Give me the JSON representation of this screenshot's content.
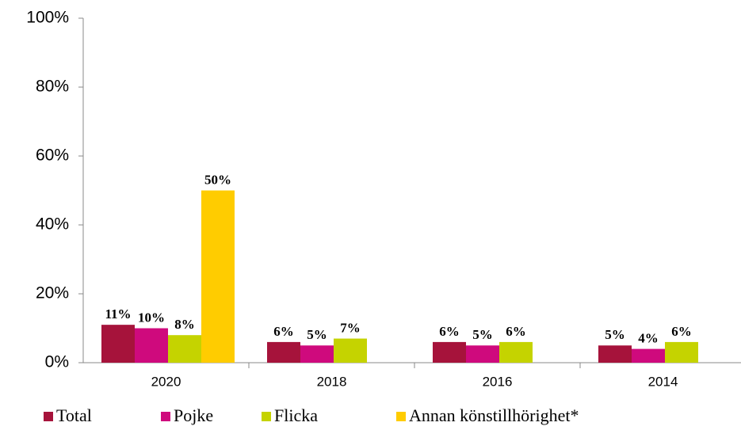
{
  "chart_data": {
    "type": "bar",
    "categories": [
      "2020",
      "2018",
      "2016",
      "2014"
    ],
    "series": [
      {
        "name": "Total",
        "color": "#a6133b",
        "values": [
          11,
          6,
          6,
          5
        ],
        "value_labels": [
          "11%",
          "6%",
          "6%",
          "5%"
        ]
      },
      {
        "name": "Pojke",
        "color": "#cf0a7d",
        "values": [
          10,
          5,
          5,
          4
        ],
        "value_labels": [
          "10%",
          "5%",
          "5%",
          "4%"
        ]
      },
      {
        "name": "Flicka",
        "color": "#c5d300",
        "values": [
          8,
          7,
          6,
          6
        ],
        "value_labels": [
          "8%",
          "7%",
          "6%",
          "6%"
        ]
      },
      {
        "name": "Annan könstillhörighet*",
        "color": "#ffcc00",
        "values": [
          50,
          null,
          null,
          null
        ],
        "value_labels": [
          "50%",
          null,
          null,
          null
        ]
      }
    ],
    "ylim": [
      0,
      100
    ],
    "yticks": [
      {
        "value": 0,
        "label": "0%"
      },
      {
        "value": 20,
        "label": "20%"
      },
      {
        "value": 40,
        "label": "40%"
      },
      {
        "value": 60,
        "label": "60%"
      },
      {
        "value": 80,
        "label": "80%"
      },
      {
        "value": 100,
        "label": "100%"
      }
    ],
    "legend": "bottom"
  }
}
